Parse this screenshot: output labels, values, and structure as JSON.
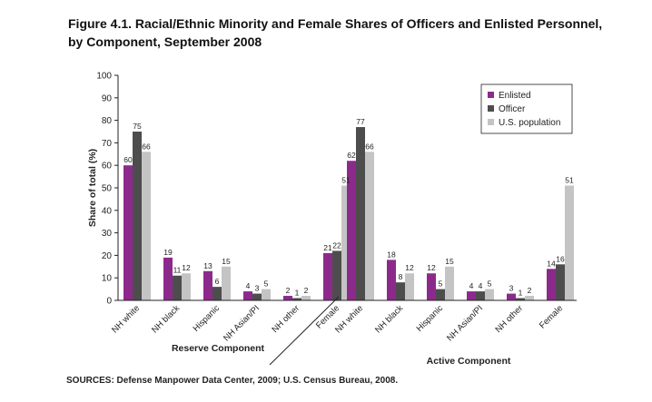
{
  "figure": {
    "title_line1": "Figure 4.1. Racial/Ethnic Minority and Female Shares of Officers and Enlisted Personnel,",
    "title_line2": "by Component, September 2008",
    "sources": "SOURCES: Defense Manpower Data Center, 2009; U.S. Census Bureau, 2008."
  },
  "chart_data": {
    "type": "bar",
    "ylabel": "Share of total (%)",
    "xlabel": "",
    "ylim": [
      0,
      100
    ],
    "yticks": [
      0,
      10,
      20,
      30,
      40,
      50,
      60,
      70,
      80,
      90,
      100
    ],
    "grid": false,
    "legend_position": "top-right",
    "groups": [
      "Reserve Component",
      "Active Component"
    ],
    "categories": [
      "NH white",
      "NH black",
      "Hispanic",
      "NH Asian/PI",
      "NH other",
      "Female",
      "NH white",
      "NH black",
      "Hispanic",
      "NH Asian/PI",
      "NH other",
      "Female"
    ],
    "series": [
      {
        "name": "Enlisted",
        "color": "#8c2a8c",
        "values": [
          60,
          19,
          13,
          4,
          2,
          21,
          62,
          18,
          12,
          4,
          3,
          14
        ]
      },
      {
        "name": "Officer",
        "color": "#4d4d4d",
        "values": [
          75,
          11,
          6,
          3,
          1,
          22,
          77,
          8,
          5,
          4,
          1,
          16
        ]
      },
      {
        "name": "U.S. population",
        "color": "#c4c4c4",
        "values": [
          66,
          12,
          15,
          5,
          2,
          51,
          66,
          12,
          15,
          5,
          2,
          51
        ]
      }
    ]
  }
}
